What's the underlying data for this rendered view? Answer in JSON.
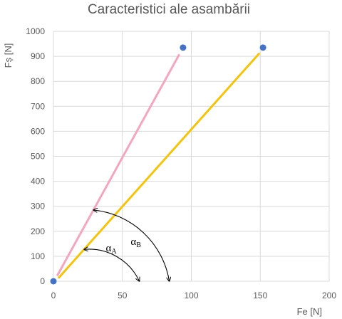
{
  "chart_data": {
    "type": "scatter",
    "title": "Caracteristici ale asambării",
    "xlabel": "Fe [N]",
    "ylabel": "Fș  [N]",
    "xlim": [
      0,
      200
    ],
    "ylim": [
      0,
      1000
    ],
    "x_ticks": [
      "0",
      "50",
      "100",
      "150",
      "200"
    ],
    "y_ticks": [
      "0",
      "100",
      "200",
      "300",
      "400",
      "500",
      "600",
      "700",
      "800",
      "900",
      "1000"
    ],
    "grid": true,
    "legend": "none",
    "points": [
      {
        "x": 0,
        "y": 0
      },
      {
        "x": 94,
        "y": 935
      },
      {
        "x": 152,
        "y": 935
      }
    ],
    "lines": [
      {
        "color": "#f4a6c0",
        "x": [
          3,
          91
        ],
        "y": [
          25,
          905
        ]
      },
      {
        "color": "#f2c40f",
        "x": [
          4,
          149
        ],
        "y": [
          15,
          910
        ]
      }
    ],
    "angle_marker_origin": {
      "x": 22,
      "y": 0
    },
    "annotations": [
      {
        "symbol": "α",
        "subscript": "A",
        "x": 38,
        "y": 120
      },
      {
        "symbol": "α",
        "subscript": "B",
        "x": 56,
        "y": 145
      }
    ],
    "point_color": "#4472c4"
  }
}
